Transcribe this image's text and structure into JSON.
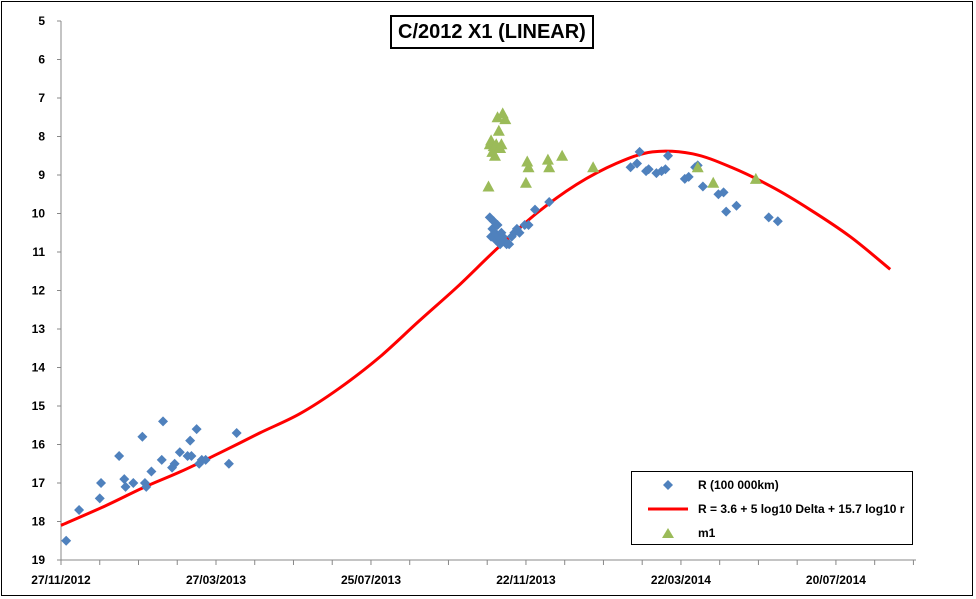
{
  "chart_data": {
    "type": "scatter",
    "title": "C/2012 X1 (LINEAR)",
    "x_axis": {
      "type": "date",
      "range": [
        "2012-11-27",
        "2014-09-20"
      ],
      "tick_labels": [
        "27/11/2012",
        "27/03/2013",
        "25/07/2013",
        "22/11/2013",
        "22/03/2014",
        "20/07/2014"
      ]
    },
    "y_axis": {
      "range": [
        5,
        19
      ],
      "reversed": true,
      "tick_labels": [
        "5",
        "6",
        "7",
        "8",
        "9",
        "10",
        "11",
        "12",
        "13",
        "14",
        "15",
        "16",
        "17",
        "18",
        "19"
      ]
    },
    "grid": false,
    "legend_position": "bottom-right",
    "series": [
      {
        "name": "R (100 000km)",
        "marker": "diamond",
        "color": "#4F81BD",
        "points": [
          [
            "2012-12-01",
            18.5
          ],
          [
            "2012-12-11",
            17.7
          ],
          [
            "2012-12-27",
            17.4
          ],
          [
            "2012-12-28",
            17.0
          ],
          [
            "2013-01-11",
            16.3
          ],
          [
            "2013-01-15",
            16.9
          ],
          [
            "2013-01-16",
            17.1
          ],
          [
            "2013-01-22",
            17.0
          ],
          [
            "2013-01-29",
            15.8
          ],
          [
            "2013-01-31",
            17.0
          ],
          [
            "2013-02-01",
            17.1
          ],
          [
            "2013-02-05",
            16.7
          ],
          [
            "2013-02-13",
            16.4
          ],
          [
            "2013-02-14",
            15.4
          ],
          [
            "2013-02-21",
            16.6
          ],
          [
            "2013-02-23",
            16.5
          ],
          [
            "2013-02-27",
            16.2
          ],
          [
            "2013-03-05",
            16.3
          ],
          [
            "2013-03-07",
            15.9
          ],
          [
            "2013-03-08",
            16.3
          ],
          [
            "2013-03-12",
            15.6
          ],
          [
            "2013-03-14",
            16.5
          ],
          [
            "2013-03-16",
            16.4
          ],
          [
            "2013-03-19",
            16.4
          ],
          [
            "2013-04-06",
            16.5
          ],
          [
            "2013-04-12",
            15.7
          ],
          [
            "2013-10-25",
            10.1
          ],
          [
            "2013-10-26",
            10.6
          ],
          [
            "2013-10-27",
            10.4
          ],
          [
            "2013-10-28",
            10.2
          ],
          [
            "2013-10-29",
            10.5
          ],
          [
            "2013-10-30",
            10.7
          ],
          [
            "2013-10-31",
            10.3
          ],
          [
            "2013-11-01",
            10.6
          ],
          [
            "2013-11-02",
            10.8
          ],
          [
            "2013-11-03",
            10.5
          ],
          [
            "2013-11-04",
            10.6
          ],
          [
            "2013-11-05",
            10.7
          ],
          [
            "2013-11-07",
            10.8
          ],
          [
            "2013-11-09",
            10.8
          ],
          [
            "2013-11-11",
            10.6
          ],
          [
            "2013-11-13",
            10.5
          ],
          [
            "2013-11-15",
            10.4
          ],
          [
            "2013-11-17",
            10.5
          ],
          [
            "2013-11-21",
            10.3
          ],
          [
            "2013-11-24",
            10.3
          ],
          [
            "2013-11-29",
            9.9
          ],
          [
            "2013-12-10",
            9.7
          ],
          [
            "2014-02-11",
            8.8
          ],
          [
            "2014-02-16",
            8.7
          ],
          [
            "2014-02-18",
            8.4
          ],
          [
            "2014-02-23",
            8.9
          ],
          [
            "2014-02-25",
            8.85
          ],
          [
            "2014-03-03",
            8.95
          ],
          [
            "2014-03-07",
            8.9
          ],
          [
            "2014-03-10",
            8.85
          ],
          [
            "2014-03-12",
            8.5
          ],
          [
            "2014-03-25",
            9.1
          ],
          [
            "2014-03-28",
            9.05
          ],
          [
            "2014-04-02",
            8.8
          ],
          [
            "2014-04-04",
            8.75
          ],
          [
            "2014-04-08",
            9.3
          ],
          [
            "2014-04-20",
            9.5
          ],
          [
            "2014-04-24",
            9.45
          ],
          [
            "2014-04-26",
            9.95
          ],
          [
            "2014-05-04",
            9.8
          ],
          [
            "2014-05-29",
            10.1
          ],
          [
            "2014-06-05",
            10.2
          ]
        ]
      },
      {
        "name": "R = 3.6 + 5 log10 Delta + 15.7  log10 r",
        "type": "line",
        "color": "#FF0000",
        "points": [
          [
            "2012-11-27",
            18.1
          ],
          [
            "2012-12-31",
            17.6
          ],
          [
            "2013-01-31",
            17.1
          ],
          [
            "2013-02-28",
            16.7
          ],
          [
            "2013-03-31",
            16.2
          ],
          [
            "2013-04-30",
            15.7
          ],
          [
            "2013-05-31",
            15.2
          ],
          [
            "2013-06-30",
            14.55
          ],
          [
            "2013-07-31",
            13.75
          ],
          [
            "2013-08-31",
            12.8
          ],
          [
            "2013-09-30",
            11.9
          ],
          [
            "2013-10-31",
            10.9
          ],
          [
            "2013-11-30",
            10.0
          ],
          [
            "2013-12-31",
            9.25
          ],
          [
            "2014-01-31",
            8.7
          ],
          [
            "2014-02-28",
            8.4
          ],
          [
            "2014-03-31",
            8.45
          ],
          [
            "2014-04-30",
            8.8
          ],
          [
            "2014-05-31",
            9.3
          ],
          [
            "2014-06-30",
            9.9
          ],
          [
            "2014-07-31",
            10.6
          ],
          [
            "2014-08-31",
            11.45
          ]
        ]
      },
      {
        "name": "m1",
        "marker": "triangle",
        "color": "#9BBB59",
        "points": [
          [
            "2013-10-24",
            9.3
          ],
          [
            "2013-10-25",
            8.2
          ],
          [
            "2013-10-26",
            8.1
          ],
          [
            "2013-10-27",
            8.4
          ],
          [
            "2013-10-28",
            8.25
          ],
          [
            "2013-10-29",
            8.5
          ],
          [
            "2013-10-30",
            8.2
          ],
          [
            "2013-10-31",
            7.5
          ],
          [
            "2013-11-01",
            7.85
          ],
          [
            "2013-11-02",
            8.3
          ],
          [
            "2013-11-03",
            8.2
          ],
          [
            "2013-11-04",
            7.4
          ],
          [
            "2013-11-06",
            7.55
          ],
          [
            "2013-11-22",
            9.2
          ],
          [
            "2013-11-23",
            8.65
          ],
          [
            "2013-11-24",
            8.8
          ],
          [
            "2013-12-09",
            8.6
          ],
          [
            "2013-12-10",
            8.8
          ],
          [
            "2013-12-20",
            8.5
          ],
          [
            "2014-01-13",
            8.8
          ],
          [
            "2014-04-04",
            8.8
          ],
          [
            "2014-04-16",
            9.2
          ],
          [
            "2014-05-19",
            9.1
          ]
        ]
      }
    ]
  }
}
